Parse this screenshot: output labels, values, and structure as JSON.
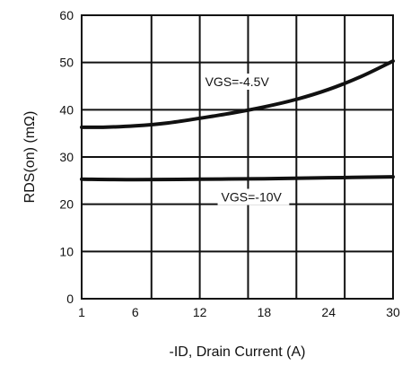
{
  "chart_data": {
    "type": "line",
    "title": "",
    "xlabel": "-ID, Drain Current (A)",
    "ylabel": "RDS(on) (mΩ)",
    "xlim": [
      1,
      30
    ],
    "ylim": [
      0,
      60
    ],
    "x_ticks": [
      {
        "value": 1,
        "label": "1"
      },
      {
        "value": 6,
        "label": "6"
      },
      {
        "value": 12,
        "label": "12"
      },
      {
        "value": 18,
        "label": "18"
      },
      {
        "value": 24,
        "label": "24"
      },
      {
        "value": 30,
        "label": "30"
      }
    ],
    "y_ticks": [
      {
        "value": 0,
        "label": "0"
      },
      {
        "value": 10,
        "label": "10"
      },
      {
        "value": 20,
        "label": "20"
      },
      {
        "value": 30,
        "label": "30"
      },
      {
        "value": 40,
        "label": "40"
      },
      {
        "value": 50,
        "label": "50"
      },
      {
        "value": 60,
        "label": "60"
      }
    ],
    "x_tick_positions": [
      1,
      7.5,
      12,
      16.5,
      21,
      25.5,
      30
    ],
    "grid": true,
    "series": [
      {
        "name": "VGS=-4.5V",
        "x": [
          1,
          3,
          6,
          9,
          12,
          15,
          18,
          21,
          24,
          27,
          30
        ],
        "y": [
          36.3,
          36.3,
          36.6,
          37.2,
          38.2,
          39.3,
          40.6,
          42.2,
          44.3,
          47.0,
          50.3
        ]
      },
      {
        "name": "VGS=-10V",
        "x": [
          1,
          6,
          12,
          18,
          24,
          30
        ],
        "y": [
          25.3,
          25.2,
          25.3,
          25.4,
          25.6,
          25.8
        ]
      }
    ],
    "colors": {
      "line": "#111111",
      "grid": "#111111",
      "background": "#ffffff"
    }
  }
}
